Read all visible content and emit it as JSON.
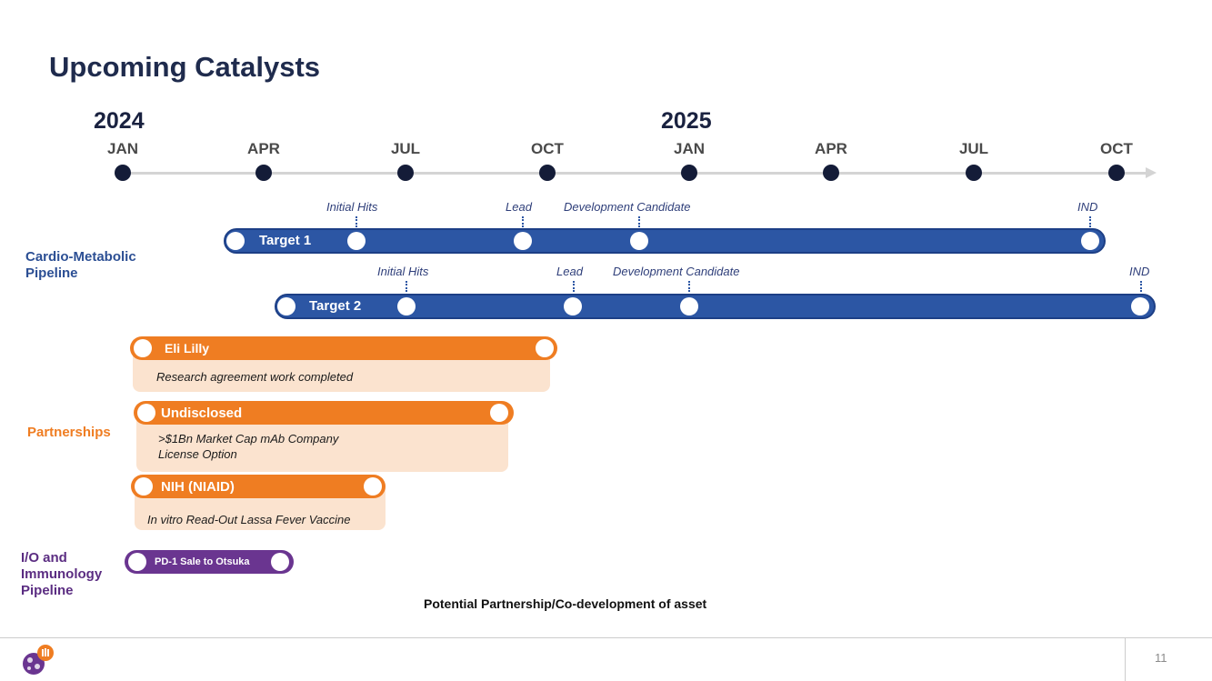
{
  "title": "Upcoming Catalysts",
  "timeline": {
    "years": [
      "2024",
      "2025"
    ],
    "months": [
      "JAN",
      "APR",
      "JUL",
      "OCT",
      "JAN",
      "APR",
      "JUL",
      "OCT"
    ]
  },
  "sections": {
    "cardio": "Cardio-Metabolic Pipeline",
    "partnerships": "Partnerships",
    "io": "I/O and Immunology Pipeline"
  },
  "targets": [
    {
      "label": "Target 1",
      "milestones": [
        "Initial Hits",
        "Lead",
        "Development Candidate",
        "IND"
      ]
    },
    {
      "label": "Target 2",
      "milestones": [
        "Initial Hits",
        "Lead",
        "Development Candidate",
        "IND"
      ]
    }
  ],
  "partners": [
    {
      "label": "Eli Lilly",
      "note": "Research agreement work completed"
    },
    {
      "label": "Undisclosed",
      "note_line1": ">$1Bn Market Cap mAb Company",
      "note_line2": "License Option"
    },
    {
      "label": "NIH (NIAID)",
      "note": "In vitro Read-Out Lassa Fever Vaccine"
    }
  ],
  "io_bar": {
    "label": "PD-1 Sale to Otsuka"
  },
  "caption": "Potential Partnership/Co-development of asset",
  "page_number": "11",
  "colors": {
    "navy": "#1f2b4d",
    "blue": "#2c56a4",
    "orange": "#ef7d22",
    "purple": "#6a3590",
    "peach": "#fbe3cf"
  }
}
